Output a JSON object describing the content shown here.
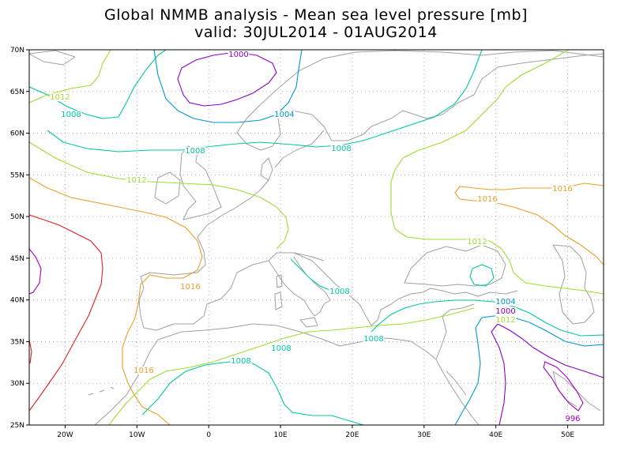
{
  "title": {
    "line1": "Global NMMB analysis - Mean sea level pressure [mb]",
    "line2": "valid: 30JUL2014 - 01AUG2014"
  },
  "axes": {
    "y_ticks": [
      "25N",
      "30N",
      "35N",
      "40N",
      "45N",
      "50N",
      "55N",
      "60N",
      "65N",
      "70N"
    ],
    "x_ticks": [
      "20W",
      "10W",
      "0",
      "10E",
      "20E",
      "30E",
      "40E",
      "50E"
    ]
  },
  "contour_colors": {
    "996": "#a000c8",
    "1000": "#8c00c8",
    "1004": "#0096d2",
    "1008": "#00c8a0",
    "1012": "#a0dc32",
    "1016": "#e6a028",
    "1020": "#e61e1e"
  },
  "coastline_color": "#a0a0a0",
  "grid": "dotted",
  "contour_labels": [
    {
      "text": "1000",
      "level": "1000"
    },
    {
      "text": "1004",
      "level": "1004"
    },
    {
      "text": "1012",
      "level": "1012"
    },
    {
      "text": "1008",
      "level": "1008"
    },
    {
      "text": "1008",
      "level": "1008"
    },
    {
      "text": "1008",
      "level": "1008"
    },
    {
      "text": "1012",
      "level": "1012"
    },
    {
      "text": "1016",
      "level": "1016"
    },
    {
      "text": "1016",
      "level": "1016"
    },
    {
      "text": "1012",
      "level": "1012"
    },
    {
      "text": "1016",
      "level": "1016"
    },
    {
      "text": "1008",
      "level": "1008"
    },
    {
      "text": "1008",
      "level": "1008"
    },
    {
      "text": "1008",
      "level": "1008"
    },
    {
      "text": "1004",
      "level": "1004"
    },
    {
      "text": "1000",
      "level": "1000"
    },
    {
      "text": "1012",
      "level": "1012"
    },
    {
      "text": "1008",
      "level": "1008"
    },
    {
      "text": "1016",
      "level": "1016"
    },
    {
      "text": "996",
      "level": "996"
    }
  ]
}
